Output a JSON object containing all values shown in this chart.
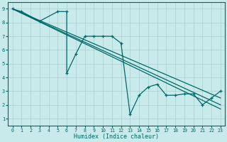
{
  "xlabel": "Humidex (Indice chaleur)",
  "bg_color": "#c8eaea",
  "line_color": "#006868",
  "grid_color": "#aad0d0",
  "xlim": [
    -0.5,
    23.5
  ],
  "ylim": [
    0.5,
    9.5
  ],
  "xticks": [
    0,
    1,
    2,
    3,
    4,
    5,
    6,
    7,
    8,
    9,
    10,
    11,
    12,
    13,
    14,
    15,
    16,
    17,
    18,
    19,
    20,
    21,
    22,
    23
  ],
  "yticks": [
    1,
    2,
    3,
    4,
    5,
    6,
    7,
    8,
    9
  ],
  "lines": [
    {
      "x": [
        0,
        1,
        3,
        5,
        6,
        6,
        7,
        8,
        9,
        10,
        11,
        12,
        13,
        14,
        15,
        16,
        17,
        18,
        19,
        20,
        21,
        22,
        23
      ],
      "y": [
        9,
        8.8,
        8.1,
        8.8,
        8.8,
        4.3,
        5.7,
        7.0,
        7.0,
        7.0,
        7.0,
        6.5,
        1.3,
        2.7,
        3.3,
        3.5,
        2.7,
        2.7,
        2.8,
        2.8,
        2.0,
        2.5,
        3.0
      ]
    },
    {
      "x": [
        0,
        23
      ],
      "y": [
        9,
        2.5
      ]
    },
    {
      "x": [
        0,
        23
      ],
      "y": [
        9,
        2.0
      ]
    },
    {
      "x": [
        0,
        23
      ],
      "y": [
        9,
        1.7
      ]
    }
  ]
}
